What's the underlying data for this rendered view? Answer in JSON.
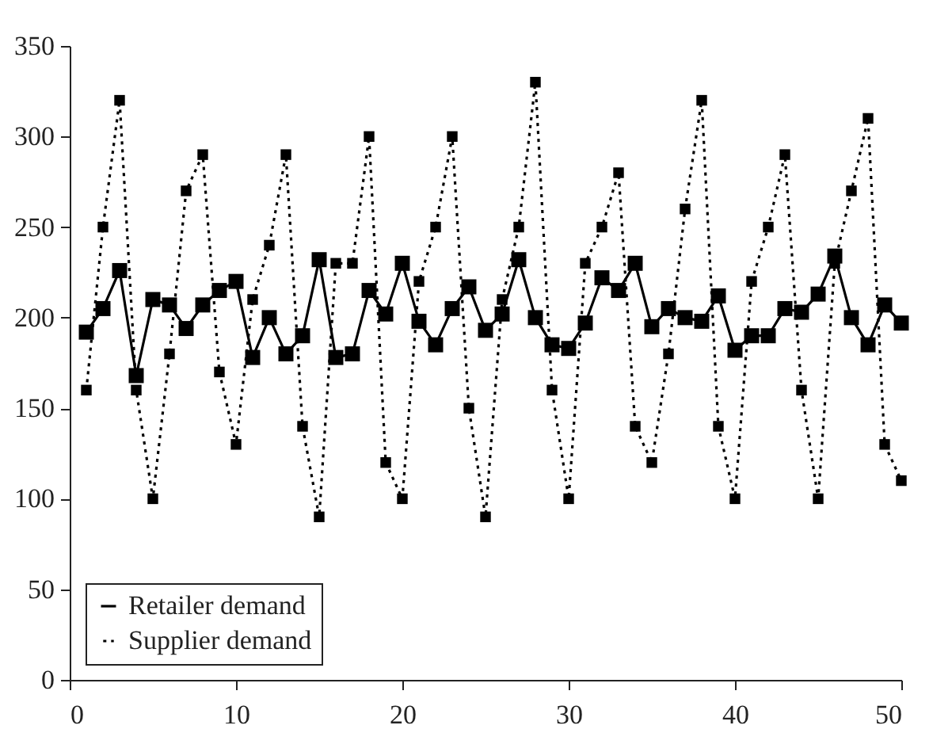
{
  "chart_data": {
    "type": "line",
    "x": [
      1,
      2,
      3,
      4,
      5,
      6,
      7,
      8,
      9,
      10,
      11,
      12,
      13,
      14,
      15,
      16,
      17,
      18,
      19,
      20,
      21,
      22,
      23,
      24,
      25,
      26,
      27,
      28,
      29,
      30,
      31,
      32,
      33,
      34,
      35,
      36,
      37,
      38,
      39,
      40,
      41,
      42,
      43,
      44,
      45,
      46,
      47,
      48,
      49,
      50
    ],
    "series": [
      {
        "name": "Retailer demand",
        "color": "#000000",
        "line_style": "solid",
        "values": [
          192,
          205,
          226,
          168,
          210,
          207,
          194,
          207,
          215,
          220,
          178,
          200,
          180,
          190,
          232,
          178,
          180,
          215,
          202,
          230,
          198,
          185,
          205,
          217,
          193,
          202,
          232,
          200,
          185,
          183,
          197,
          222,
          215,
          230,
          195,
          205,
          200,
          198,
          212,
          182,
          190,
          190,
          205,
          203,
          213,
          234,
          200,
          185,
          207,
          197
        ]
      },
      {
        "name": "Supplier demand",
        "color": "#000000",
        "line_style": "dotted",
        "values": [
          160,
          250,
          320,
          160,
          100,
          180,
          270,
          290,
          170,
          130,
          210,
          240,
          290,
          140,
          90,
          230,
          230,
          300,
          120,
          100,
          220,
          250,
          300,
          150,
          90,
          210,
          250,
          330,
          160,
          100,
          230,
          250,
          280,
          140,
          120,
          180,
          260,
          320,
          140,
          100,
          220,
          250,
          290,
          160,
          100,
          230,
          270,
          310,
          130,
          110
        ]
      }
    ],
    "xlim": [
      0,
      50
    ],
    "xticks": [
      0,
      10,
      20,
      30,
      40,
      50
    ],
    "ylim": [
      0,
      350
    ],
    "yticks": [
      0,
      50,
      100,
      150,
      200,
      250,
      300,
      350
    ],
    "marker": "square",
    "legend": "bottom left",
    "grid": false
  }
}
